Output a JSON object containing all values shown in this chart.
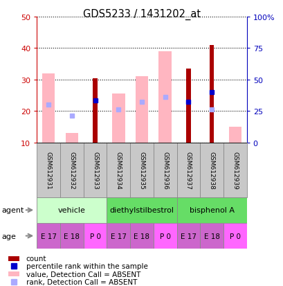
{
  "title": "GDS5233 / 1431202_at",
  "samples": [
    "GSM612931",
    "GSM612932",
    "GSM612933",
    "GSM612934",
    "GSM612935",
    "GSM612936",
    "GSM612937",
    "GSM612938",
    "GSM612939"
  ],
  "value_absent": [
    32,
    13,
    null,
    25.5,
    31,
    39,
    null,
    null,
    15
  ],
  "count": [
    null,
    null,
    30.5,
    null,
    null,
    null,
    33.5,
    41,
    null
  ],
  "rank_absent": [
    22,
    18.5,
    null,
    20.5,
    23,
    24.5,
    null,
    20.5,
    null
  ],
  "percentile_rank": [
    null,
    null,
    23.5,
    null,
    null,
    null,
    23,
    26,
    null
  ],
  "ylim_left": [
    10,
    50
  ],
  "ylim_right": [
    0,
    100
  ],
  "yticks_left": [
    10,
    20,
    30,
    40,
    50
  ],
  "yticks_right": [
    0,
    25,
    50,
    75,
    100
  ],
  "ytick_labels_right": [
    "0",
    "25",
    "50",
    "75",
    "100%"
  ],
  "agents": [
    {
      "label": "vehicle",
      "cols": [
        0,
        1,
        2
      ]
    },
    {
      "label": "diethylstilbestrol",
      "cols": [
        3,
        4,
        5
      ]
    },
    {
      "label": "bisphenol A",
      "cols": [
        6,
        7,
        8
      ]
    }
  ],
  "agent_colors": [
    "#CCFFCC",
    "#66DD66",
    "#66DD66"
  ],
  "ages": [
    "E 17",
    "E 18",
    "P 0",
    "E 17",
    "E 18",
    "P 0",
    "E 17",
    "E 18",
    "P 0"
  ],
  "age_colors": [
    "#CC66CC",
    "#CC66CC",
    "#FF66FF",
    "#CC66CC",
    "#CC66CC",
    "#FF66FF",
    "#CC66CC",
    "#CC66CC",
    "#FF66FF"
  ],
  "bar_width": 0.55,
  "absent_value_color": "#FFB6C1",
  "count_color": "#AA0000",
  "rank_absent_color": "#AAAAFF",
  "percentile_rank_color": "#0000CC",
  "left_axis_color": "#CC0000",
  "right_axis_color": "#0000BB",
  "sample_bg_color": "#C8C8C8",
  "legend_items": [
    {
      "color": "#AA0000",
      "shape": "rect",
      "label": "count"
    },
    {
      "color": "#0000CC",
      "shape": "square",
      "label": "percentile rank within the sample"
    },
    {
      "color": "#FFB6C1",
      "shape": "rect",
      "label": "value, Detection Call = ABSENT"
    },
    {
      "color": "#AAAAFF",
      "shape": "square",
      "label": "rank, Detection Call = ABSENT"
    }
  ]
}
